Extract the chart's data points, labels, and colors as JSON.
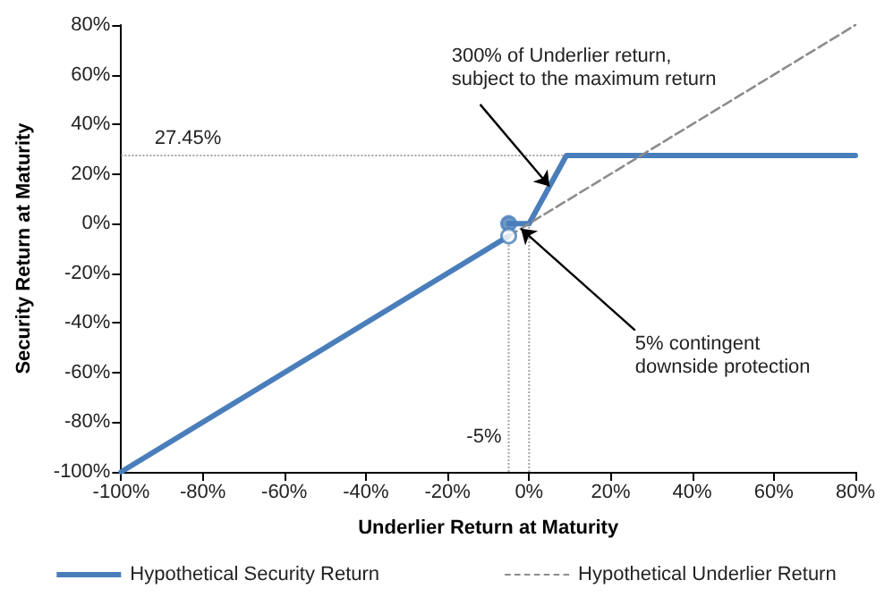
{
  "chart_data": {
    "type": "line",
    "xlabel": "Underlier Return at Maturity",
    "ylabel": "Security Return at Maturity",
    "series": [
      {
        "name": "Hypothetical Security Return",
        "color": "#4a7ebb",
        "line_style": "solid",
        "marker": "none",
        "x": [
          -5,
          0,
          9.15,
          80
        ],
        "values": [
          0,
          0,
          27.45,
          27.45
        ]
      },
      {
        "color": "#4a7ebb",
        "line_style": "solid",
        "marker": "none",
        "x": [
          -100,
          -5
        ],
        "values": [
          -100,
          -5
        ]
      },
      {
        "name": "Hypothetical Underlier Return",
        "color": "#8c8c8c",
        "line_style": "dashed",
        "marker": "none",
        "x": [
          -5,
          80
        ],
        "values": [
          -5,
          80
        ]
      },
      {
        "type": "scatter",
        "marker": "circle",
        "color": "#4a7ebb",
        "colors": [
          "#4a7ebb",
          "#ffffff"
        ],
        "x": [
          -5,
          -5
        ],
        "values": [
          0,
          -5
        ]
      }
    ],
    "xlim": [
      -100,
      80
    ],
    "xticks": [
      {
        "value": -100,
        "label": "-100%"
      },
      {
        "value": -80,
        "label": "-80%"
      },
      {
        "value": -60,
        "label": "-60%"
      },
      {
        "value": -40,
        "label": "-40%"
      },
      {
        "value": -20,
        "label": "-20%"
      },
      {
        "value": 0,
        "label": "0%"
      },
      {
        "value": 20,
        "label": "20%"
      },
      {
        "value": 40,
        "label": "40%"
      },
      {
        "value": 60,
        "label": "60%"
      },
      {
        "value": 80,
        "label": "80%"
      }
    ],
    "ylim": [
      -100,
      80
    ],
    "yticks": [
      {
        "value": -100,
        "label": "-100%"
      },
      {
        "value": -80,
        "label": "-80%"
      },
      {
        "value": -60,
        "label": "-60%"
      },
      {
        "value": -40,
        "label": "-40%"
      },
      {
        "value": -20,
        "label": "-20%"
      },
      {
        "value": 0,
        "label": "0%"
      },
      {
        "value": 20,
        "label": "20%"
      },
      {
        "value": 40,
        "label": "40%"
      },
      {
        "value": 60,
        "label": "60%"
      },
      {
        "value": 80,
        "label": "80%"
      }
    ],
    "ref_lines": [
      {
        "axis": "y",
        "value": 27.45,
        "label": "27.45%",
        "color": "#a6a6a6",
        "line_style": "dotted"
      },
      {
        "axis": "x",
        "value": -5,
        "label": "-5%",
        "color": "#a6a6a6",
        "line_style": "dotted"
      },
      {
        "axis": "x",
        "value": 0,
        "color": "#a6a6a6",
        "line_style": "dotted"
      }
    ],
    "annotations": [
      {
        "text": "300% of Underlier return,\nsubject to the maximum return",
        "x": 5,
        "y": 15
      },
      {
        "text": "5% contingent\ndownside protection",
        "x": -2,
        "y": -2
      }
    ],
    "grid": false,
    "legend": "bottom"
  }
}
